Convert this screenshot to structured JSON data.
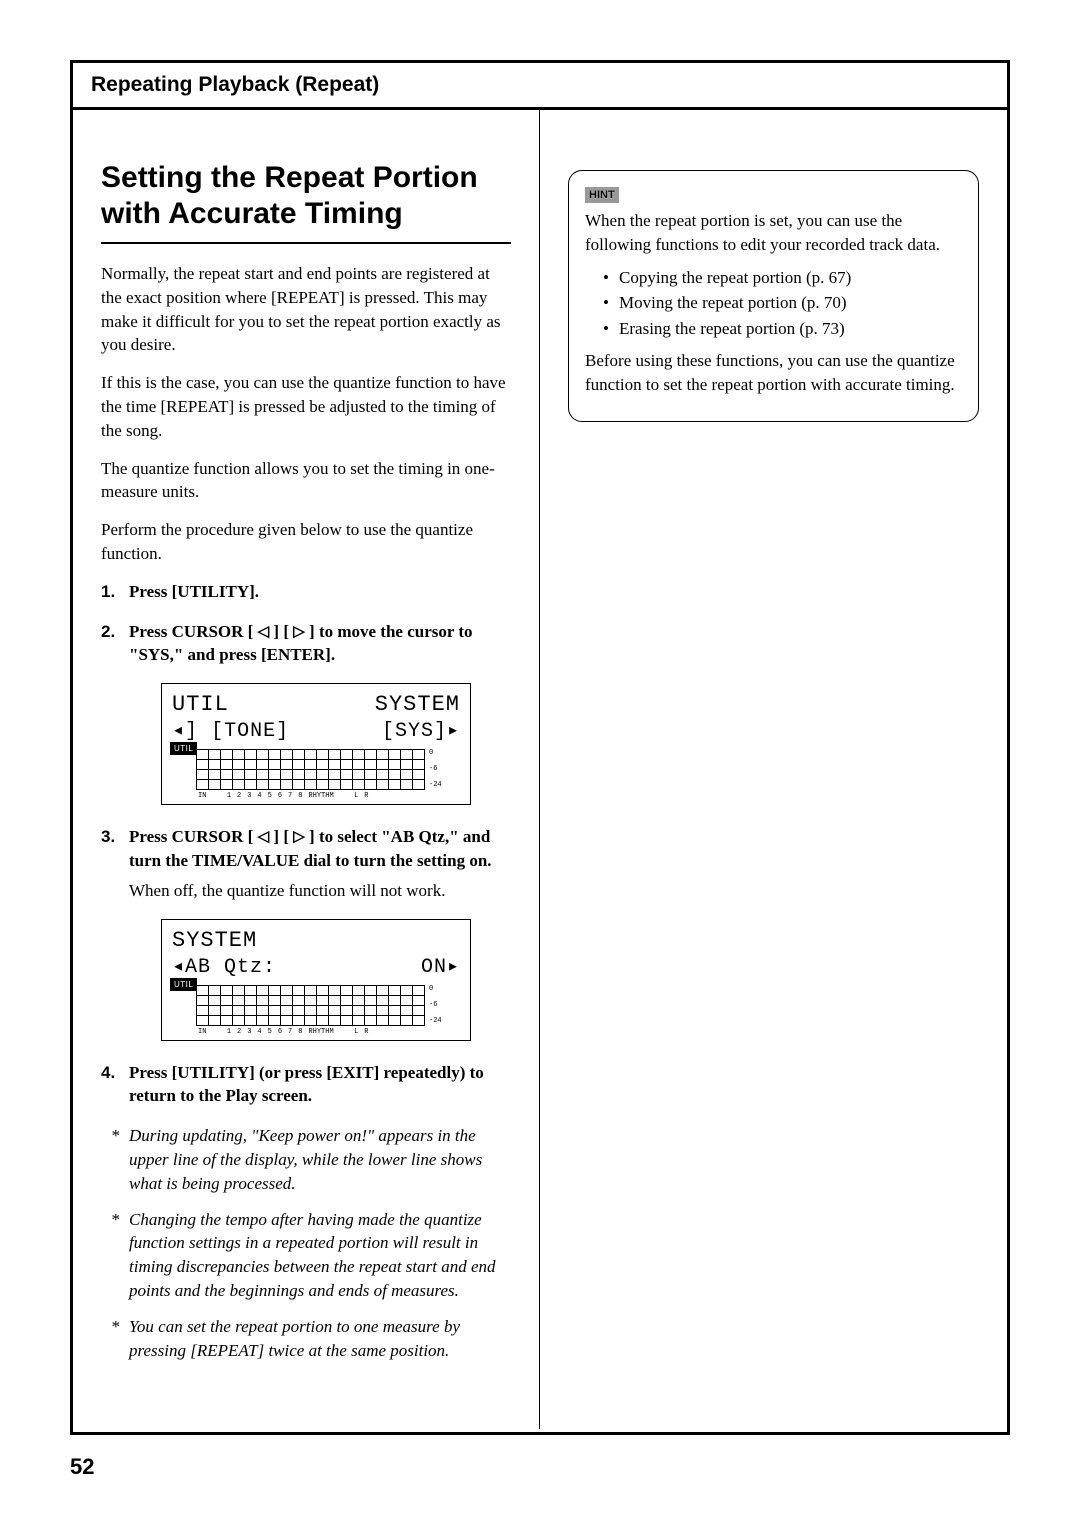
{
  "header": {
    "title": "Repeating Playback (Repeat)"
  },
  "main_title": "Setting the Repeat Portion with Accurate Timing",
  "intro": [
    "Normally, the repeat start and end points are registered at the exact position where [REPEAT] is pressed. This may make it difficult for you to set the repeat portion exactly as you desire.",
    "If this is the case, you can use the quantize function to have the time [REPEAT] is pressed be adjusted to the timing of the song.",
    "The quantize function allows you to set the timing in one-measure units.",
    "Perform the procedure given below to use the quantize function."
  ],
  "steps": [
    {
      "num": "1.",
      "bold": "Press [UTILITY]."
    },
    {
      "num": "2.",
      "bold_pre": "Press CURSOR [ ",
      "bold_mid": " ] [ ",
      "bold_post": " ] to move the cursor to \"SYS,\" and press [ENTER]."
    },
    {
      "num": "3.",
      "bold_pre": "Press CURSOR [ ",
      "bold_mid": " ] [ ",
      "bold_post": " ] to select \"AB Qtz,\" and turn the TIME/VALUE dial to turn the setting on.",
      "follow": "When off, the quantize function will not work."
    },
    {
      "num": "4.",
      "bold": "Press [UTILITY] (or press [EXIT] repeatedly) to return to the Play screen."
    }
  ],
  "lcd1": {
    "line1_left": "UTIL",
    "line1_right": "SYSTEM",
    "line2_left_sym": "◂]",
    "line2_mid": "[TONE]",
    "line2_right": "[SYS]▸",
    "badge": "UTIL",
    "y_labels": [
      "0",
      "-6",
      "-24"
    ],
    "x_labels": [
      "IN",
      "1",
      "2",
      "3",
      "4",
      "5",
      "6",
      "7",
      "8",
      "RHYTHM",
      "L",
      "R"
    ]
  },
  "lcd2": {
    "line1": "SYSTEM",
    "line2_left": "◂AB Qtz:",
    "line2_right": "ON▸",
    "badge": "UTIL",
    "y_labels": [
      "0",
      "-6",
      "-24"
    ],
    "x_labels": [
      "IN",
      "1",
      "2",
      "3",
      "4",
      "5",
      "6",
      "7",
      "8",
      "RHYTHM",
      "L",
      "R"
    ]
  },
  "notes": [
    "During updating, \"Keep power on!\" appears in the upper line of the display, while the lower line shows what is being processed.",
    "Changing the tempo after having made the quantize function settings in a repeated portion will result in timing discrepancies between the repeat start and end points and the beginnings and ends of measures.",
    "You can set the repeat portion to one measure by pressing [REPEAT] twice at the same position."
  ],
  "hint": {
    "badge": "HINT",
    "intro": "When the repeat portion is set, you can use the following functions to edit your recorded track data.",
    "items": [
      "Copying the repeat portion (p. 67)",
      "Moving the repeat portion (p. 70)",
      "Erasing the repeat portion (p. 73)"
    ],
    "outro": "Before using these functions, you can use the quantize function to set the repeat portion with accurate timing."
  },
  "page_number": "52"
}
